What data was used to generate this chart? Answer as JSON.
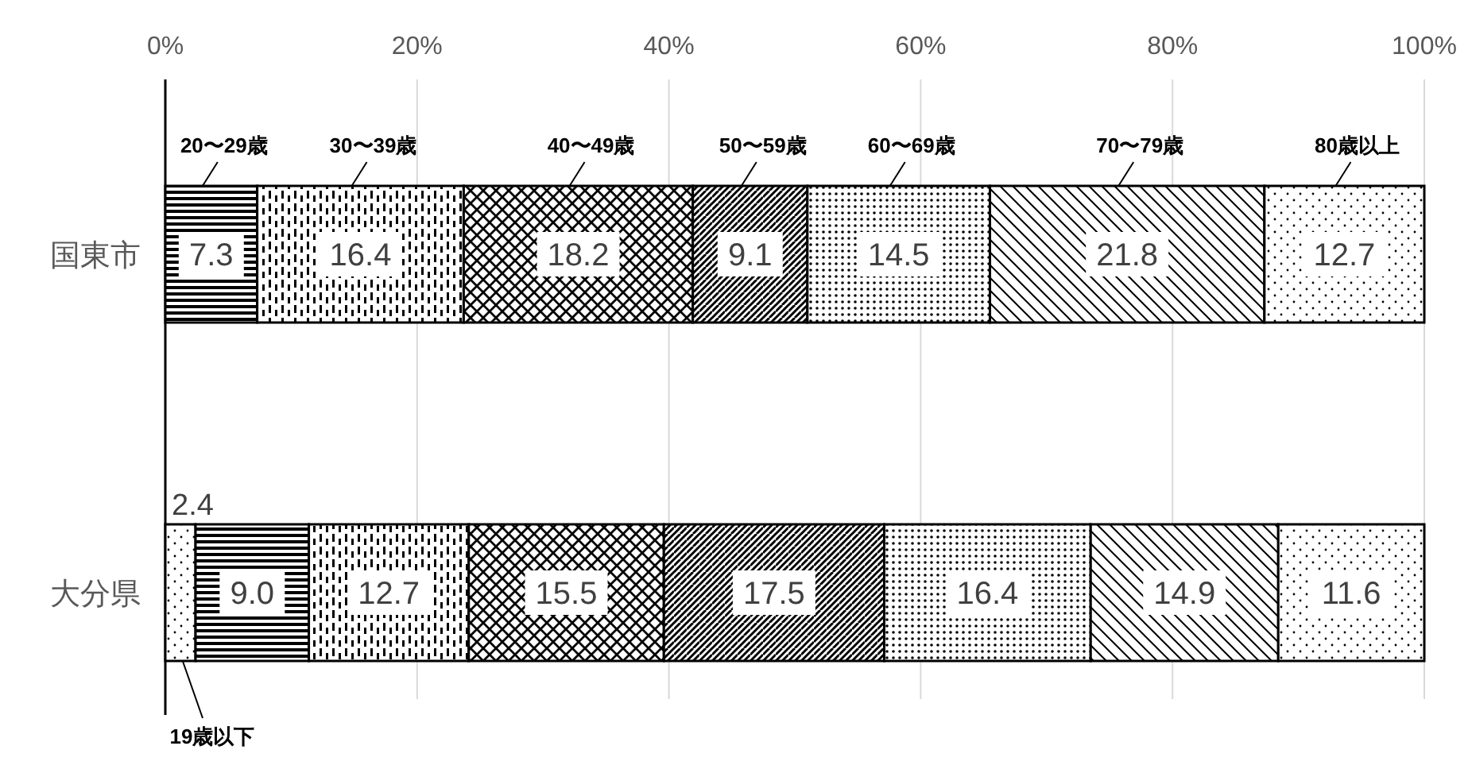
{
  "chart_data": {
    "type": "bar",
    "orientation": "horizontal",
    "stacked": true,
    "categories": [
      "国東市",
      "大分県"
    ],
    "series": [
      {
        "name": "19歳以下",
        "color": "#000000",
        "values": [
          0,
          2.4
        ],
        "value_labels": [
          null,
          "2.4"
        ]
      },
      {
        "name": "20〜29歳",
        "color": "#000000",
        "values": [
          7.3,
          9.0
        ],
        "value_labels": [
          "7.3",
          "9.0"
        ]
      },
      {
        "name": "30〜39歳",
        "color": "#000000",
        "values": [
          16.4,
          12.7
        ],
        "value_labels": [
          "16.4",
          "12.7"
        ]
      },
      {
        "name": "40〜49歳",
        "color": "#000000",
        "values": [
          18.2,
          15.5
        ],
        "value_labels": [
          "18.2",
          "15.5"
        ]
      },
      {
        "name": "50〜59歳",
        "color": "#000000",
        "values": [
          9.1,
          17.5
        ],
        "value_labels": [
          "9.1",
          "17.5"
        ]
      },
      {
        "name": "60〜69歳",
        "color": "#000000",
        "values": [
          14.5,
          16.4
        ],
        "value_labels": [
          "14.5",
          "16.4"
        ]
      },
      {
        "name": "70〜79歳",
        "color": "#000000",
        "values": [
          21.8,
          14.9
        ],
        "value_labels": [
          "21.8",
          "14.9"
        ]
      },
      {
        "name": "80歳以上",
        "color": "#000000",
        "values": [
          12.7,
          11.6
        ],
        "value_labels": [
          "12.7",
          "11.6"
        ]
      }
    ],
    "xlim": [
      0,
      100
    ],
    "xticks": [
      {
        "value": 0,
        "label": "0%"
      },
      {
        "value": 20,
        "label": "20%"
      },
      {
        "value": 40,
        "label": "40%"
      },
      {
        "value": 60,
        "label": "60%"
      },
      {
        "value": 80,
        "label": "80%"
      },
      {
        "value": 100,
        "label": "100%"
      }
    ],
    "grid": "x",
    "legend": false
  }
}
